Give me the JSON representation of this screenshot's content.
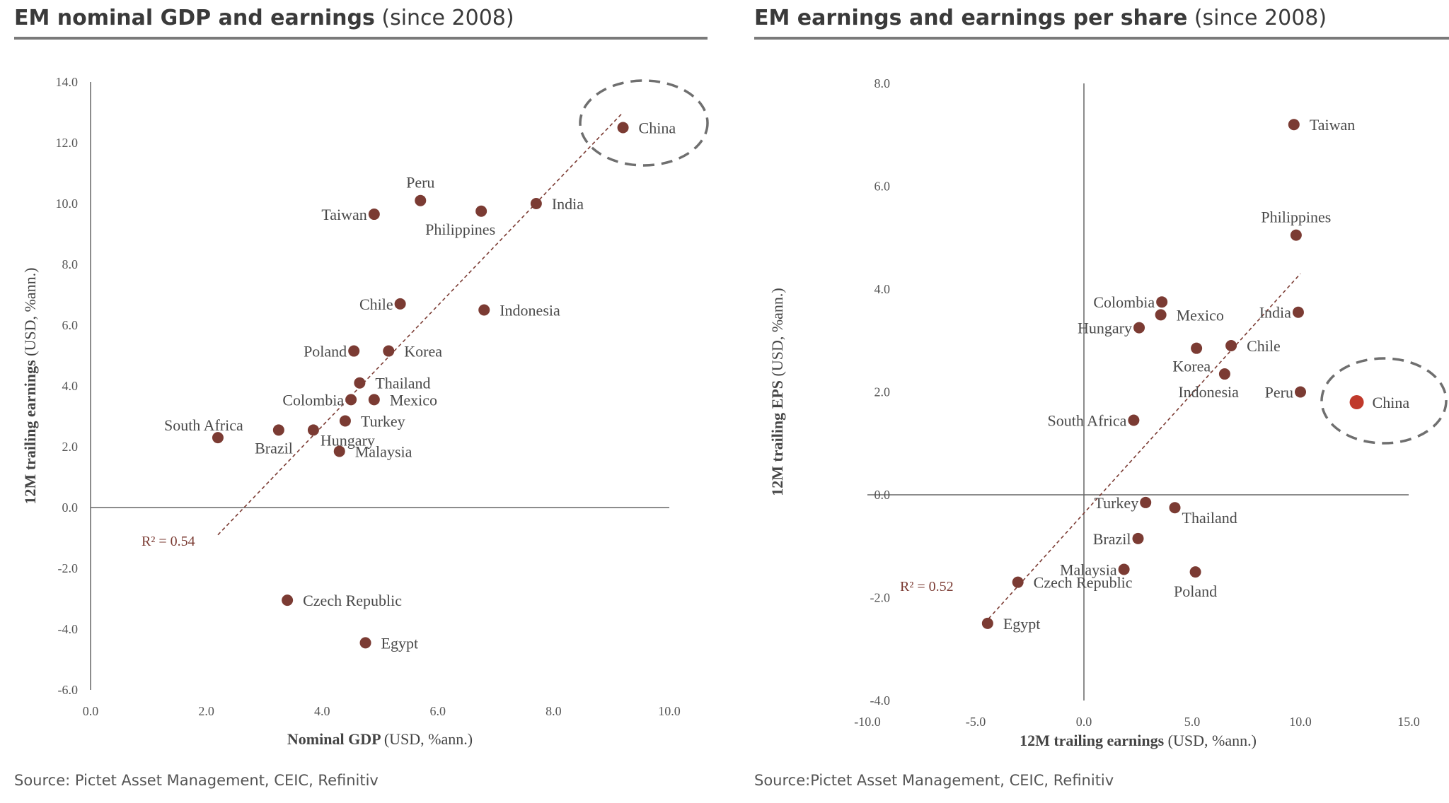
{
  "colors": {
    "point": "#7b3b33",
    "highlight": "#c0392b",
    "trend": "#7b3b33",
    "axis": "#666666",
    "label": "#4a4a4a",
    "ellipse": "#6f6f6f"
  },
  "left": {
    "title_bold": "EM nominal GDP and earnings",
    "title_normal": "(since 2008)",
    "source": "Source: Pictet Asset Management, CEIC, Refinitiv"
  },
  "right": {
    "title_bold": "EM earnings and earnings per share",
    "title_normal": "(since 2008)",
    "source": "Source:Pictet Asset Management, CEIC, Refinitiv"
  },
  "chart_data": [
    {
      "type": "scatter",
      "title": "EM nominal GDP and earnings (since 2008)",
      "xlabel_bold": "Nominal GDP",
      "xlabel_normal": "(USD, %ann.)",
      "ylabel_bold": "12M trailing earnings",
      "ylabel_normal": "(USD, %ann.)",
      "xlim": [
        0,
        10
      ],
      "ylim": [
        -6,
        14
      ],
      "xticks": [
        "0.0",
        "2.0",
        "4.0",
        "6.0",
        "8.0",
        "10.0"
      ],
      "xtick_values": [
        0,
        2,
        4,
        6,
        8,
        10
      ],
      "yticks": [
        "-6.0",
        "-4.0",
        "-2.0",
        "0.0",
        "2.0",
        "4.0",
        "6.0",
        "8.0",
        "10.0",
        "12.0",
        "14.0"
      ],
      "ytick_values": [
        -6,
        -4,
        -2,
        0,
        2,
        4,
        6,
        8,
        10,
        12,
        14
      ],
      "r2_label": "R² = 0.54",
      "trendline": {
        "x": [
          2.2,
          9.2
        ],
        "y": [
          -0.9,
          13.0
        ]
      },
      "highlight": "China",
      "points": [
        {
          "name": "China",
          "x": 9.2,
          "y": 12.5,
          "label_side": "right"
        },
        {
          "name": "India",
          "x": 7.7,
          "y": 10.0,
          "label_side": "right"
        },
        {
          "name": "Peru",
          "x": 5.7,
          "y": 10.1,
          "label_side": "above"
        },
        {
          "name": "Philippines",
          "x": 6.75,
          "y": 9.75,
          "label_side": "below-left"
        },
        {
          "name": "Taiwan",
          "x": 4.9,
          "y": 9.65,
          "label_side": "left"
        },
        {
          "name": "Chile",
          "x": 5.35,
          "y": 6.7,
          "label_side": "left"
        },
        {
          "name": "Indonesia",
          "x": 6.8,
          "y": 6.5,
          "label_side": "right"
        },
        {
          "name": "Poland",
          "x": 4.55,
          "y": 5.15,
          "label_side": "left"
        },
        {
          "name": "Korea",
          "x": 5.15,
          "y": 5.15,
          "label_side": "right"
        },
        {
          "name": "Thailand",
          "x": 4.65,
          "y": 4.1,
          "label_side": "right"
        },
        {
          "name": "Colombia",
          "x": 4.5,
          "y": 3.55,
          "label_side": "left"
        },
        {
          "name": "Mexico",
          "x": 4.9,
          "y": 3.55,
          "label_side": "right"
        },
        {
          "name": "South Africa",
          "x": 2.2,
          "y": 2.3,
          "label_side": "above-left"
        },
        {
          "name": "Brazil",
          "x": 3.25,
          "y": 2.55,
          "label_side": "below-left"
        },
        {
          "name": "Hungary",
          "x": 3.85,
          "y": 2.55,
          "label_side": "below-right"
        },
        {
          "name": "Turkey",
          "x": 4.4,
          "y": 2.85,
          "label_side": "right"
        },
        {
          "name": "Malaysia",
          "x": 4.3,
          "y": 1.85,
          "label_side": "right"
        },
        {
          "name": "Czech Republic",
          "x": 3.4,
          "y": -3.05,
          "label_side": "right"
        },
        {
          "name": "Egypt",
          "x": 4.75,
          "y": -4.45,
          "label_side": "right"
        }
      ]
    },
    {
      "type": "scatter",
      "title": "EM earnings and earnings per share (since 2008)",
      "xlabel_bold": "12M trailing earnings",
      "xlabel_normal": "(USD, %ann.)",
      "ylabel_bold": "12M trailing EPS",
      "ylabel_normal": "(USD, %ann.)",
      "xlim": [
        -10,
        15
      ],
      "ylim": [
        -4,
        8
      ],
      "xticks": [
        "-10.0",
        "-5.0",
        "0.0",
        "5.0",
        "10.0",
        "15.0"
      ],
      "xtick_values": [
        -10,
        -5,
        0,
        5,
        10,
        15
      ],
      "yticks": [
        "-4.0",
        "-2.0",
        "0.0",
        "2.0",
        "4.0",
        "6.0",
        "8.0"
      ],
      "ytick_values": [
        -4,
        -2,
        0,
        2,
        4,
        6,
        8
      ],
      "r2_label": "R² = 0.52",
      "trendline": {
        "x": [
          -4.6,
          10.0
        ],
        "y": [
          -2.5,
          4.3
        ]
      },
      "highlight": "China",
      "points": [
        {
          "name": "Taiwan",
          "x": 9.7,
          "y": 7.2,
          "label_side": "right"
        },
        {
          "name": "Philippines",
          "x": 9.8,
          "y": 5.05,
          "label_side": "above"
        },
        {
          "name": "India",
          "x": 9.9,
          "y": 3.55,
          "label_side": "left"
        },
        {
          "name": "Peru",
          "x": 10.0,
          "y": 2.0,
          "label_side": "left"
        },
        {
          "name": "China",
          "x": 12.6,
          "y": 1.8,
          "label_side": "right"
        },
        {
          "name": "Colombia",
          "x": 3.6,
          "y": 3.75,
          "label_side": "left"
        },
        {
          "name": "Mexico",
          "x": 3.55,
          "y": 3.5,
          "label_side": "right"
        },
        {
          "name": "Hungary",
          "x": 2.55,
          "y": 3.25,
          "label_side": "left"
        },
        {
          "name": "Korea",
          "x": 5.2,
          "y": 2.85,
          "label_side": "below-left"
        },
        {
          "name": "Chile",
          "x": 6.8,
          "y": 2.9,
          "label_side": "right"
        },
        {
          "name": "Indonesia",
          "x": 6.5,
          "y": 2.35,
          "label_side": "below-left"
        },
        {
          "name": "South Africa",
          "x": 2.3,
          "y": 1.45,
          "label_side": "left"
        },
        {
          "name": "Turkey",
          "x": 2.85,
          "y": -0.15,
          "label_side": "left"
        },
        {
          "name": "Thailand",
          "x": 4.2,
          "y": -0.25,
          "label_side": "below-right"
        },
        {
          "name": "Brazil",
          "x": 2.5,
          "y": -0.85,
          "label_side": "left"
        },
        {
          "name": "Malaysia",
          "x": 1.85,
          "y": -1.45,
          "label_side": "left"
        },
        {
          "name": "Poland",
          "x": 5.15,
          "y": -1.5,
          "label_side": "below"
        },
        {
          "name": "Czech Republic",
          "x": -3.05,
          "y": -1.7,
          "label_side": "right"
        },
        {
          "name": "Egypt",
          "x": -4.45,
          "y": -2.5,
          "label_side": "right"
        }
      ]
    }
  ]
}
